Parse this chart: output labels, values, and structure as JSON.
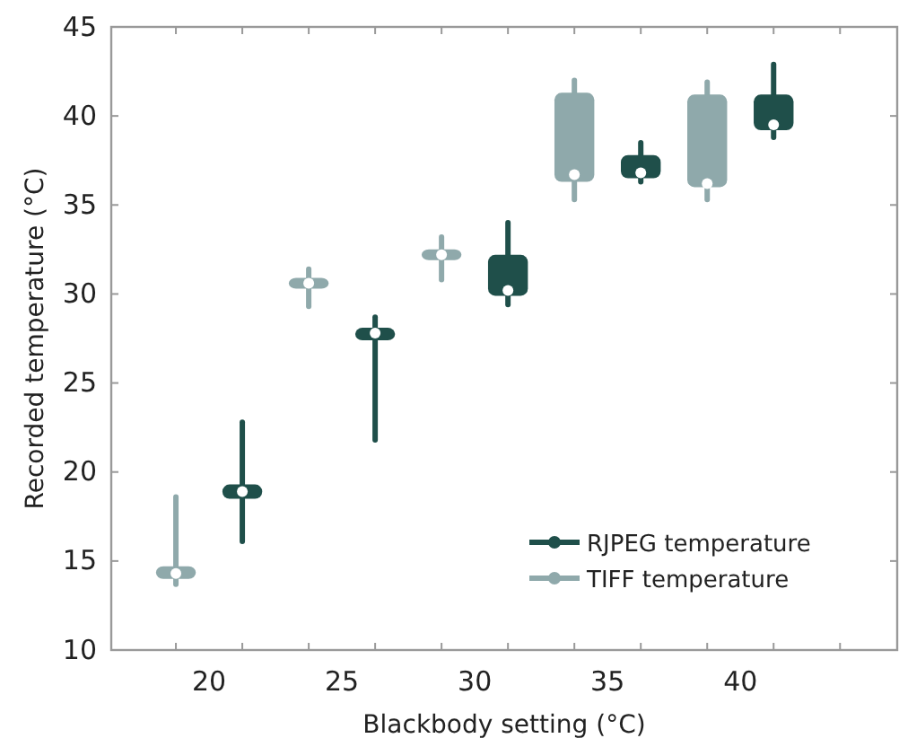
{
  "chart_data": {
    "type": "box",
    "xlabel": "Blackbody setting (°C)",
    "ylabel": "Recorded temperature (°C)",
    "categories": [
      "20",
      "25",
      "30",
      "35",
      "40"
    ],
    "ylim": [
      10,
      45
    ],
    "yticks": [
      10,
      15,
      20,
      25,
      30,
      35,
      40,
      45
    ],
    "legend": "bottom right",
    "grid": false,
    "series": [
      {
        "name": "RJPEG temperature",
        "color": "#1f4f4a",
        "boxes": [
          {
            "low": 16.1,
            "q1": 18.5,
            "median": 18.9,
            "q3": 19.3,
            "high": 22.8
          },
          {
            "low": 21.8,
            "q1": 27.4,
            "median": 27.8,
            "q3": 28.1,
            "high": 28.7
          },
          {
            "low": 29.4,
            "q1": 29.9,
            "median": 30.2,
            "q3": 32.2,
            "high": 34.0
          },
          {
            "low": 36.3,
            "q1": 36.5,
            "median": 36.8,
            "q3": 37.8,
            "high": 38.5
          },
          {
            "low": 38.8,
            "q1": 39.2,
            "median": 39.5,
            "q3": 41.2,
            "high": 42.9
          }
        ]
      },
      {
        "name": "TIFF temperature",
        "color": "#8fa9ab",
        "boxes": [
          {
            "low": 13.7,
            "q1": 14.0,
            "median": 14.3,
            "q3": 14.7,
            "high": 18.6
          },
          {
            "low": 29.3,
            "q1": 30.3,
            "median": 30.6,
            "q3": 30.9,
            "high": 31.4
          },
          {
            "low": 30.8,
            "q1": 31.9,
            "median": 32.2,
            "q3": 32.5,
            "high": 33.2
          },
          {
            "low": 35.3,
            "q1": 36.3,
            "median": 36.7,
            "q3": 41.3,
            "high": 42.0
          },
          {
            "low": 35.3,
            "q1": 36.0,
            "median": 36.2,
            "q3": 41.2,
            "high": 41.9
          }
        ]
      }
    ]
  }
}
